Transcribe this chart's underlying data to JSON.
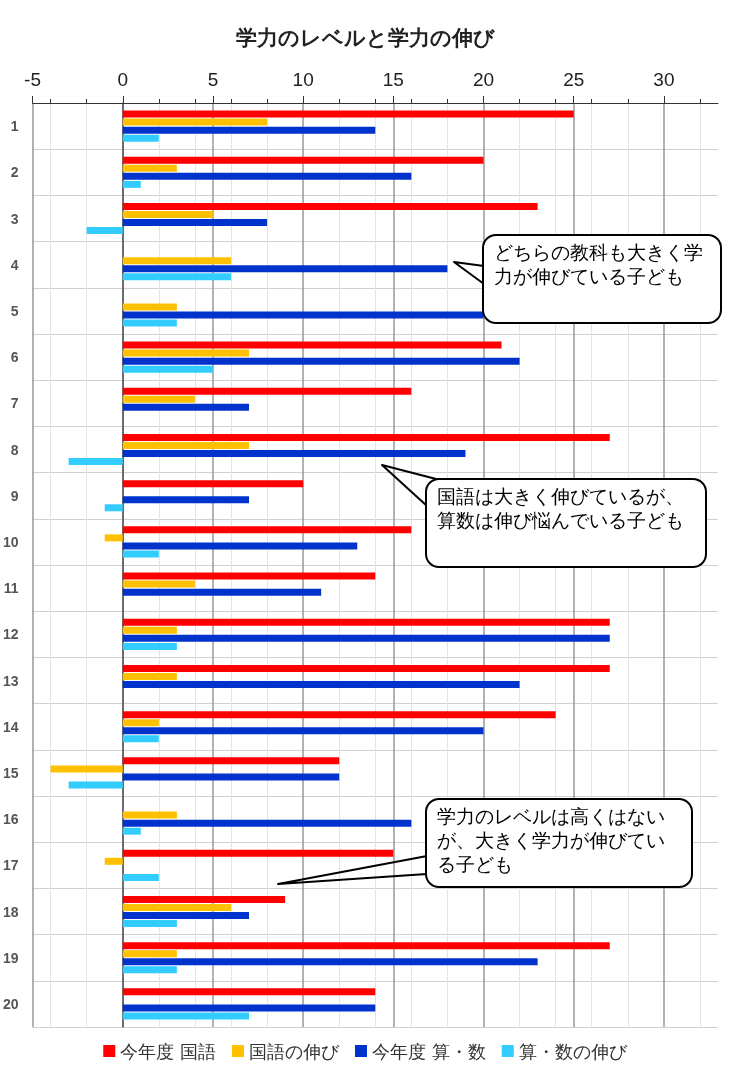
{
  "chart_data": {
    "type": "bar",
    "orientation": "horizontal",
    "title": "学力のレベルと学力の伸び",
    "categories": [
      "1",
      "2",
      "3",
      "4",
      "5",
      "6",
      "7",
      "8",
      "9",
      "10",
      "11",
      "12",
      "13",
      "14",
      "15",
      "16",
      "17",
      "18",
      "19",
      "20"
    ],
    "series": [
      {
        "name": "今年度 国語",
        "color": "#ff0000",
        "values": [
          25,
          20,
          23,
          null,
          null,
          21,
          16,
          27,
          10,
          16,
          14,
          27,
          27,
          24,
          12,
          null,
          15,
          9,
          27,
          14
        ]
      },
      {
        "name": "国語の伸び",
        "color": "#ffc000",
        "values": [
          8,
          3,
          5,
          6,
          3,
          7,
          4,
          7,
          0,
          -1,
          4,
          3,
          3,
          2,
          -4,
          3,
          -1,
          6,
          3,
          0
        ]
      },
      {
        "name": "今年度 算・数",
        "color": "#0033cc",
        "values": [
          14,
          16,
          8,
          18,
          20,
          22,
          7,
          19,
          7,
          13,
          11,
          27,
          22,
          20,
          12,
          16,
          null,
          7,
          23,
          14
        ]
      },
      {
        "name": "算・数の伸び",
        "color": "#33ccff",
        "values": [
          2,
          1,
          -2,
          6,
          3,
          5,
          0,
          -3,
          -1,
          2,
          0,
          3,
          0,
          2,
          -3,
          1,
          2,
          3,
          3,
          7
        ]
      }
    ],
    "xlim": [
      -5,
      33
    ],
    "xticks": [
      -5,
      0,
      5,
      10,
      15,
      20,
      25,
      30
    ],
    "grid": true,
    "legend": "bottom",
    "annotations": [
      "どちらの教科も大きく学力が伸びている子ども",
      "国語は大きく伸びているが、算数は伸び悩んでいる子ども",
      "学力のレベルは高くはないが、大きく学力が伸びている子ども"
    ]
  }
}
